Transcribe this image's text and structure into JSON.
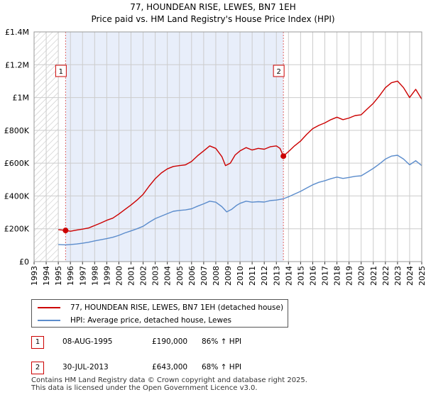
{
  "chart_data": {
    "type": "line",
    "title": "77, HOUNDEAN RISE, LEWES, BN7 1EH",
    "subtitle": "Price paid vs. HM Land Registry's House Price Index (HPI)",
    "xlabel": "",
    "ylabel": "",
    "xlim": [
      1993,
      2025
    ],
    "ylim": [
      0,
      1400000
    ],
    "x_ticks": [
      "1993",
      "1994",
      "1995",
      "1996",
      "1997",
      "1998",
      "1999",
      "2000",
      "2001",
      "2002",
      "2003",
      "2004",
      "2005",
      "2006",
      "2007",
      "2008",
      "2009",
      "2010",
      "2011",
      "2012",
      "2013",
      "2014",
      "2015",
      "2016",
      "2017",
      "2018",
      "2019",
      "2020",
      "2021",
      "2022",
      "2023",
      "2024",
      "2025"
    ],
    "y_ticks": [
      {
        "value": 0,
        "label": "£0"
      },
      {
        "value": 200000,
        "label": "£200K"
      },
      {
        "value": 400000,
        "label": "£400K"
      },
      {
        "value": 600000,
        "label": "£600K"
      },
      {
        "value": 800000,
        "label": "£800K"
      },
      {
        "value": 1000000,
        "label": "£1M"
      },
      {
        "value": 1200000,
        "label": "£1.2M"
      },
      {
        "value": 1400000,
        "label": "£1.4M"
      }
    ],
    "grid": true,
    "hatched_until": 1995.0,
    "shaded_between": [
      1995.6,
      2013.58
    ],
    "series": [
      {
        "name": "77, HOUNDEAN RISE, LEWES, BN7 1EH (detached house)",
        "color": "#cc0000",
        "points": [
          [
            1995.0,
            195000
          ],
          [
            1995.6,
            190000
          ],
          [
            1996.0,
            185000
          ],
          [
            1996.5,
            192000
          ],
          [
            1997.0,
            198000
          ],
          [
            1997.5,
            205000
          ],
          [
            1998.0,
            220000
          ],
          [
            1998.5,
            235000
          ],
          [
            1999.0,
            252000
          ],
          [
            1999.5,
            265000
          ],
          [
            2000.0,
            290000
          ],
          [
            2000.5,
            318000
          ],
          [
            2001.0,
            345000
          ],
          [
            2001.5,
            375000
          ],
          [
            2002.0,
            410000
          ],
          [
            2002.5,
            460000
          ],
          [
            2003.0,
            505000
          ],
          [
            2003.5,
            540000
          ],
          [
            2004.0,
            565000
          ],
          [
            2004.5,
            580000
          ],
          [
            2005.0,
            585000
          ],
          [
            2005.5,
            590000
          ],
          [
            2006.0,
            610000
          ],
          [
            2006.5,
            645000
          ],
          [
            2007.0,
            675000
          ],
          [
            2007.5,
            705000
          ],
          [
            2008.0,
            690000
          ],
          [
            2008.5,
            640000
          ],
          [
            2008.8,
            585000
          ],
          [
            2009.2,
            600000
          ],
          [
            2009.6,
            650000
          ],
          [
            2010.0,
            675000
          ],
          [
            2010.5,
            695000
          ],
          [
            2011.0,
            680000
          ],
          [
            2011.5,
            690000
          ],
          [
            2012.0,
            685000
          ],
          [
            2012.5,
            700000
          ],
          [
            2013.0,
            705000
          ],
          [
            2013.3,
            690000
          ],
          [
            2013.58,
            643000
          ],
          [
            2014.0,
            670000
          ],
          [
            2014.5,
            705000
          ],
          [
            2015.0,
            735000
          ],
          [
            2015.5,
            775000
          ],
          [
            2016.0,
            810000
          ],
          [
            2016.5,
            830000
          ],
          [
            2017.0,
            845000
          ],
          [
            2017.5,
            865000
          ],
          [
            2018.0,
            880000
          ],
          [
            2018.5,
            865000
          ],
          [
            2019.0,
            875000
          ],
          [
            2019.5,
            890000
          ],
          [
            2020.0,
            895000
          ],
          [
            2020.5,
            930000
          ],
          [
            2021.0,
            965000
          ],
          [
            2021.5,
            1010000
          ],
          [
            2022.0,
            1060000
          ],
          [
            2022.5,
            1090000
          ],
          [
            2023.0,
            1100000
          ],
          [
            2023.5,
            1060000
          ],
          [
            2024.0,
            1000000
          ],
          [
            2024.5,
            1050000
          ],
          [
            2025.0,
            990000
          ]
        ]
      },
      {
        "name": "HPI: Average price, detached house, Lewes",
        "color": "#5b8ccc",
        "points": [
          [
            1995.0,
            104000
          ],
          [
            1995.6,
            102000
          ],
          [
            1996.0,
            104000
          ],
          [
            1996.5,
            107000
          ],
          [
            1997.0,
            112000
          ],
          [
            1997.5,
            118000
          ],
          [
            1998.0,
            126000
          ],
          [
            1998.5,
            133000
          ],
          [
            1999.0,
            140000
          ],
          [
            1999.5,
            148000
          ],
          [
            2000.0,
            160000
          ],
          [
            2000.5,
            175000
          ],
          [
            2001.0,
            187000
          ],
          [
            2001.5,
            200000
          ],
          [
            2002.0,
            215000
          ],
          [
            2002.5,
            240000
          ],
          [
            2003.0,
            262000
          ],
          [
            2003.5,
            277000
          ],
          [
            2004.0,
            292000
          ],
          [
            2004.5,
            307000
          ],
          [
            2005.0,
            312000
          ],
          [
            2005.5,
            315000
          ],
          [
            2006.0,
            322000
          ],
          [
            2006.5,
            338000
          ],
          [
            2007.0,
            352000
          ],
          [
            2007.5,
            368000
          ],
          [
            2008.0,
            362000
          ],
          [
            2008.5,
            335000
          ],
          [
            2008.9,
            303000
          ],
          [
            2009.3,
            318000
          ],
          [
            2009.7,
            342000
          ],
          [
            2010.0,
            355000
          ],
          [
            2010.5,
            368000
          ],
          [
            2011.0,
            362000
          ],
          [
            2011.5,
            365000
          ],
          [
            2012.0,
            363000
          ],
          [
            2012.5,
            372000
          ],
          [
            2013.0,
            375000
          ],
          [
            2013.58,
            383000
          ],
          [
            2014.0,
            395000
          ],
          [
            2014.5,
            412000
          ],
          [
            2015.0,
            428000
          ],
          [
            2015.5,
            448000
          ],
          [
            2016.0,
            468000
          ],
          [
            2016.5,
            483000
          ],
          [
            2017.0,
            493000
          ],
          [
            2017.5,
            505000
          ],
          [
            2018.0,
            515000
          ],
          [
            2018.5,
            507000
          ],
          [
            2019.0,
            513000
          ],
          [
            2019.5,
            520000
          ],
          [
            2020.0,
            523000
          ],
          [
            2020.5,
            545000
          ],
          [
            2021.0,
            568000
          ],
          [
            2021.5,
            595000
          ],
          [
            2022.0,
            625000
          ],
          [
            2022.5,
            643000
          ],
          [
            2023.0,
            648000
          ],
          [
            2023.5,
            625000
          ],
          [
            2024.0,
            590000
          ],
          [
            2024.5,
            615000
          ],
          [
            2025.0,
            585000
          ]
        ]
      }
    ],
    "annotations": [
      {
        "label": "1",
        "x": 1995.6,
        "value": 190000
      },
      {
        "label": "2",
        "x": 2013.58,
        "value": 643000
      }
    ]
  },
  "legend": {
    "property": "77, HOUNDEAN RISE, LEWES, BN7 1EH (detached house)",
    "hpi": "HPI: Average price, detached house, Lewes"
  },
  "sales": [
    {
      "num": "1",
      "date": "08-AUG-1995",
      "price": "£190,000",
      "hpi": "86% ↑ HPI"
    },
    {
      "num": "2",
      "date": "30-JUL-2013",
      "price": "£643,000",
      "hpi": "68% ↑ HPI"
    }
  ],
  "footer": {
    "line1": "Contains HM Land Registry data © Crown copyright and database right 2025.",
    "line2": "This data is licensed under the Open Government Licence v3.0."
  },
  "colors": {
    "property": "#cc0000",
    "hpi": "#5b8ccc",
    "shade": "#e8eefa",
    "grid": "#cccccc",
    "marker_line": "#e06666"
  }
}
